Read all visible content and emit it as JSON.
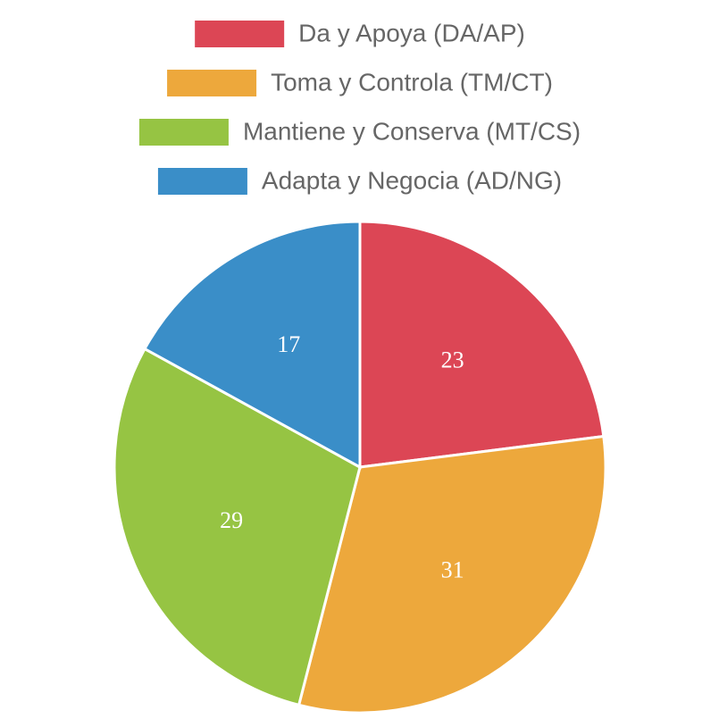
{
  "chart_data": {
    "type": "pie",
    "categories": [
      "Da y Apoya (DA/AP)",
      "Toma y Controla (TM/CT)",
      "Mantiene y Conserva (MT/CS)",
      "Adapta y Negocia (AD/NG)"
    ],
    "values": [
      23,
      31,
      29,
      17
    ],
    "colors": [
      "#dc4655",
      "#eda83c",
      "#96c443",
      "#3a8ec8"
    ],
    "legend": "top"
  }
}
